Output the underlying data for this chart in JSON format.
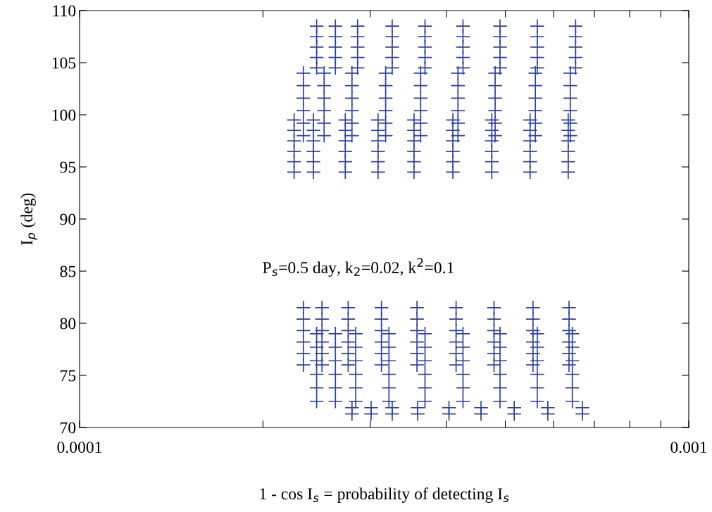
{
  "chart_data": {
    "type": "scatter",
    "xlabel": "1 - cos I$_{s}$ = probability of detecting I$_{s}$",
    "ylabel": "I$_{p}$ (deg)",
    "annotations": [
      "P$_{s}$=0.5 day, k$_{2}$=0.02, k$^{2}$=0.1"
    ],
    "log": "x",
    "xlim": [
      0.0001,
      0.001
    ],
    "ylim": [
      70,
      110
    ],
    "xticks": [
      0.0001,
      {
        "value": 0.0002,
        "label": null
      },
      {
        "value": 0.0003,
        "label": null
      },
      {
        "value": 0.0004,
        "label": null
      },
      {
        "value": 0.0005,
        "label": null
      },
      {
        "value": 0.0006,
        "label": null
      },
      {
        "value": 0.0007,
        "label": null
      },
      {
        "value": 0.0008,
        "label": null
      },
      {
        "value": 0.0009,
        "label": null
      },
      0.001
    ],
    "yticks": [
      70,
      75,
      80,
      85,
      90,
      95,
      100,
      105,
      110
    ],
    "grid": false,
    "marker": "cross",
    "series": [
      {
        "color": "#2b3fa6",
        "x": [
          0.000225,
          0.000225,
          0.000225,
          0.000225,
          0.000225,
          0.000225,
          0.000242,
          0.000242,
          0.000242,
          0.000242,
          0.000242,
          0.000242,
          0.000273,
          0.000273,
          0.000273,
          0.000273,
          0.000273,
          0.000273,
          0.000309,
          0.000309,
          0.000309,
          0.000309,
          0.000309,
          0.000309,
          0.000354,
          0.000354,
          0.000354,
          0.000354,
          0.000354,
          0.000354,
          0.00041,
          0.00041,
          0.00041,
          0.00041,
          0.00041,
          0.00041,
          0.000475,
          0.000475,
          0.000475,
          0.000475,
          0.000475,
          0.000475,
          0.000549,
          0.000549,
          0.000549,
          0.000549,
          0.000549,
          0.000549,
          0.000634,
          0.000634,
          0.000634,
          0.000634,
          0.000634,
          0.000634
        ],
        "values": [
          94.5,
          95.5,
          96.5,
          97.5,
          98.5,
          99.5,
          94.5,
          95.5,
          96.5,
          97.5,
          98.5,
          99.5,
          94.5,
          95.5,
          96.5,
          97.5,
          98.5,
          99.5,
          94.5,
          95.5,
          96.5,
          97.5,
          98.5,
          99.5,
          94.5,
          95.5,
          96.5,
          97.5,
          98.5,
          99.5,
          94.5,
          95.5,
          96.5,
          97.5,
          98.5,
          99.5,
          94.5,
          95.5,
          96.5,
          97.5,
          98.5,
          99.5,
          94.5,
          95.5,
          96.5,
          97.5,
          98.5,
          99.5,
          94.5,
          95.5,
          96.5,
          97.5,
          98.5,
          99.5
        ]
      },
      {
        "color": "#2b3fa6",
        "x": [
          0.000233,
          0.000233,
          0.000233,
          0.000233,
          0.000233,
          0.000233,
          0.000252,
          0.000252,
          0.000252,
          0.000252,
          0.000252,
          0.000252,
          0.00028,
          0.00028,
          0.00028,
          0.00028,
          0.00028,
          0.00028,
          0.000318,
          0.000318,
          0.000318,
          0.000318,
          0.000318,
          0.000318,
          0.000363,
          0.000363,
          0.000363,
          0.000363,
          0.000363,
          0.000363,
          0.000418,
          0.000418,
          0.000418,
          0.000418,
          0.000418,
          0.000418,
          0.000481,
          0.000481,
          0.000481,
          0.000481,
          0.000481,
          0.000481,
          0.00056,
          0.00056,
          0.00056,
          0.00056,
          0.00056,
          0.00056,
          0.000639,
          0.000639,
          0.000639,
          0.000639,
          0.000639,
          0.000639
        ],
        "values": [
          98,
          99.2,
          100.4,
          101.6,
          102.8,
          104,
          98,
          99.2,
          100.4,
          101.6,
          102.8,
          104,
          98,
          99.2,
          100.4,
          101.6,
          102.8,
          104,
          98,
          99.2,
          100.4,
          101.6,
          102.8,
          104,
          98,
          99.2,
          100.4,
          101.6,
          102.8,
          104,
          98,
          99.2,
          100.4,
          101.6,
          102.8,
          104,
          98,
          99.2,
          100.4,
          101.6,
          102.8,
          104,
          98,
          99.2,
          100.4,
          101.6,
          102.8,
          104,
          98,
          99.2,
          100.4,
          101.6,
          102.8,
          104
        ]
      },
      {
        "color": "#2b3fa6",
        "x": [
          0.000245,
          0.000245,
          0.000245,
          0.000245,
          0.000245,
          0.000263,
          0.000263,
          0.000263,
          0.000263,
          0.000263,
          0.000286,
          0.000286,
          0.000286,
          0.000286,
          0.000286,
          0.000326,
          0.000326,
          0.000326,
          0.000326,
          0.000326,
          0.000369,
          0.000369,
          0.000369,
          0.000369,
          0.000369,
          0.000426,
          0.000426,
          0.000426,
          0.000426,
          0.000426,
          0.00049,
          0.00049,
          0.00049,
          0.00049,
          0.00049,
          0.000564,
          0.000564,
          0.000564,
          0.000564,
          0.000564,
          0.000652,
          0.000652,
          0.000652,
          0.000652,
          0.000652
        ],
        "values": [
          104.5,
          105.5,
          106.5,
          107.5,
          108.5,
          104.5,
          105.5,
          106.5,
          107.5,
          108.5,
          104.5,
          105.5,
          106.5,
          107.5,
          108.5,
          104.5,
          105.5,
          106.5,
          107.5,
          108.5,
          104.5,
          105.5,
          106.5,
          107.5,
          108.5,
          104.5,
          105.5,
          106.5,
          107.5,
          108.5,
          104.5,
          105.5,
          106.5,
          107.5,
          108.5,
          104.5,
          105.5,
          106.5,
          107.5,
          108.5,
          104.5,
          105.5,
          106.5,
          107.5,
          108.5
        ]
      },
      {
        "color": "#2b3fa6",
        "x": [
          0.000233,
          0.000233,
          0.000233,
          0.000233,
          0.000233,
          0.000233,
          0.00025,
          0.00025,
          0.00025,
          0.00025,
          0.00025,
          0.00025,
          0.000276,
          0.000276,
          0.000276,
          0.000276,
          0.000276,
          0.000276,
          0.000313,
          0.000313,
          0.000313,
          0.000313,
          0.000313,
          0.000313,
          0.000358,
          0.000358,
          0.000358,
          0.000358,
          0.000358,
          0.000358,
          0.000415,
          0.000415,
          0.000415,
          0.000415,
          0.000415,
          0.000415,
          0.000479,
          0.000479,
          0.000479,
          0.000479,
          0.000479,
          0.000479,
          0.000555,
          0.000555,
          0.000555,
          0.000555,
          0.000555,
          0.000555,
          0.000636,
          0.000636,
          0.000636,
          0.000636,
          0.000636,
          0.000636
        ],
        "values": [
          76,
          77.1,
          78.2,
          79.3,
          80.4,
          81.5,
          76,
          77.1,
          78.2,
          79.3,
          80.4,
          81.5,
          76,
          77.1,
          78.2,
          79.3,
          80.4,
          81.5,
          76,
          77.1,
          78.2,
          79.3,
          80.4,
          81.5,
          76,
          77.1,
          78.2,
          79.3,
          80.4,
          81.5,
          76,
          77.1,
          78.2,
          79.3,
          80.4,
          81.5,
          76,
          77.1,
          78.2,
          79.3,
          80.4,
          81.5,
          76,
          77.1,
          78.2,
          79.3,
          80.4,
          81.5,
          76,
          77.1,
          78.2,
          79.3,
          80.4,
          81.5
        ]
      },
      {
        "color": "#2b3fa6",
        "x": [
          0.000245,
          0.000245,
          0.000245,
          0.000245,
          0.000245,
          0.000245,
          0.000263,
          0.000263,
          0.000263,
          0.000263,
          0.000263,
          0.000263,
          0.000284,
          0.000284,
          0.000284,
          0.000284,
          0.000284,
          0.000284,
          0.000322,
          0.000322,
          0.000322,
          0.000322,
          0.000322,
          0.000322,
          0.000369,
          0.000369,
          0.000369,
          0.000369,
          0.000369,
          0.000369,
          0.000426,
          0.000426,
          0.000426,
          0.000426,
          0.000426,
          0.000426,
          0.00049,
          0.00049,
          0.00049,
          0.00049,
          0.00049,
          0.00049,
          0.000564,
          0.000564,
          0.000564,
          0.000564,
          0.000564,
          0.000564,
          0.000644,
          0.000644,
          0.000644,
          0.000644,
          0.000644,
          0.000644
        ],
        "values": [
          72.5,
          73.8,
          75.1,
          76.4,
          77.7,
          79,
          72.5,
          73.8,
          75.1,
          76.4,
          77.7,
          79,
          72.5,
          73.8,
          75.1,
          76.4,
          77.7,
          79,
          72.5,
          73.8,
          75.1,
          76.4,
          77.7,
          79,
          72.5,
          73.8,
          75.1,
          76.4,
          77.7,
          79,
          72.5,
          73.8,
          75.1,
          76.4,
          77.7,
          79,
          72.5,
          73.8,
          75.1,
          76.4,
          77.7,
          79,
          72.5,
          73.8,
          75.1,
          76.4,
          77.7,
          79,
          72.5,
          73.8,
          75.1,
          76.4,
          77.7,
          79
        ]
      },
      {
        "color": "#2b3fa6",
        "x": [
          0.00028,
          0.00028,
          0.000301,
          0.000301,
          0.000326,
          0.000326,
          0.000359,
          0.000359,
          0.000404,
          0.000404,
          0.000456,
          0.000456,
          0.000517,
          0.000517,
          0.000587,
          0.000587,
          0.000669,
          0.000669
        ],
        "values": [
          71.3,
          71.9,
          71.3,
          71.9,
          71.3,
          71.9,
          71.3,
          71.9,
          71.3,
          71.9,
          71.3,
          71.9,
          71.3,
          71.9,
          71.3,
          71.9,
          71.3,
          71.9
        ]
      }
    ]
  }
}
